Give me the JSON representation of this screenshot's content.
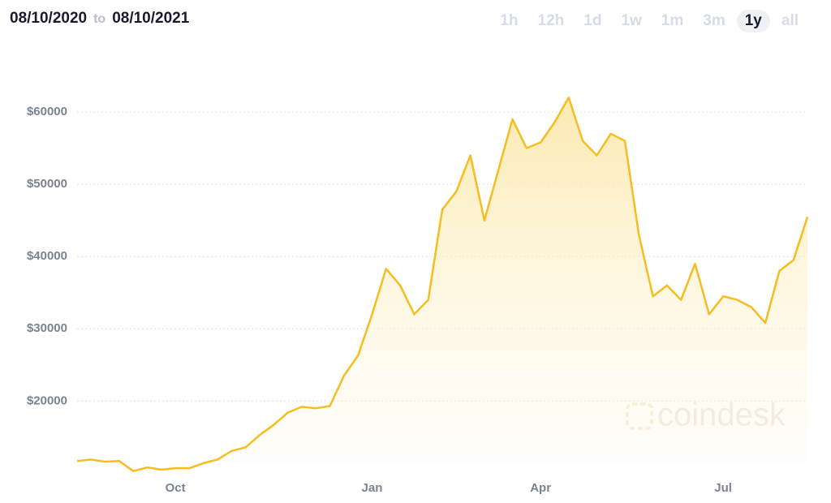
{
  "header": {
    "start_date": "08/10/2020",
    "separator": "to",
    "end_date": "08/10/2021"
  },
  "range_buttons": [
    "1h",
    "12h",
    "1d",
    "1w",
    "1m",
    "3m",
    "1y",
    "all"
  ],
  "active_range": "1y",
  "watermark": "coindesk",
  "chart_data": {
    "type": "area",
    "color": "#f5bd1f",
    "categories": [
      null,
      null,
      null,
      null,
      null,
      null,
      null,
      "Oct",
      null,
      null,
      null,
      null,
      null,
      null,
      null,
      null,
      null,
      null,
      null,
      null,
      null,
      "Jan",
      null,
      null,
      null,
      null,
      null,
      null,
      null,
      null,
      null,
      null,
      null,
      "Apr",
      null,
      null,
      null,
      null,
      null,
      null,
      null,
      null,
      null,
      null,
      null,
      null,
      "Jul",
      null,
      null,
      null,
      null,
      null,
      null
    ],
    "values": [
      11700,
      11900,
      11600,
      11700,
      10300,
      10800,
      10500,
      10700,
      10700,
      11400,
      11900,
      13100,
      13600,
      15300,
      16700,
      18400,
      19200,
      19000,
      19300,
      23500,
      26300,
      32000,
      38300,
      36000,
      32000,
      34000,
      46500,
      49000,
      54000,
      45000,
      52000,
      59000,
      55000,
      55800,
      58600,
      62000,
      56000,
      54000,
      57000,
      56000,
      43000,
      34500,
      36000,
      34000,
      39000,
      32000,
      34500,
      34000,
      33000,
      30800,
      38000,
      39500,
      45500
    ],
    "ylim": [
      11500,
      65400
    ],
    "yticks": [
      {
        "value": 20000,
        "label": "$20000"
      },
      {
        "value": 30000,
        "label": "$30000"
      },
      {
        "value": 40000,
        "label": "$40000"
      },
      {
        "value": 50000,
        "label": "$50000"
      },
      {
        "value": 60000,
        "label": "$60000"
      }
    ],
    "grid": true
  }
}
